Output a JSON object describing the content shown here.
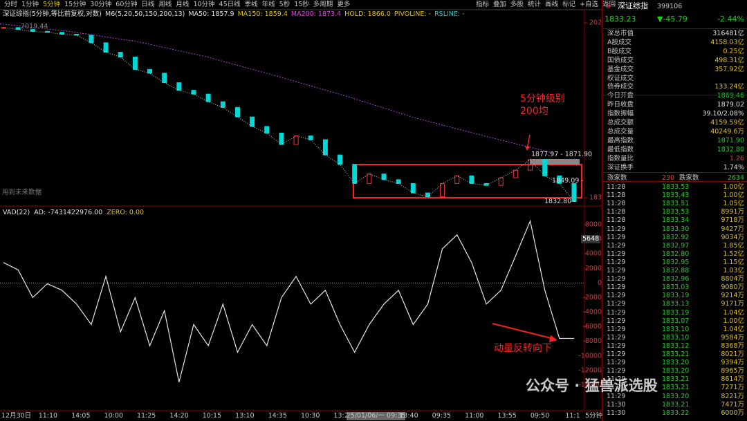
{
  "toolbar": {
    "periods": [
      "分时",
      "1分钟",
      "5分钟",
      "15分钟",
      "30分钟",
      "60分钟",
      "日线",
      "周线",
      "月线",
      "10分钟",
      "45日线",
      "季线",
      "年线",
      "5秒",
      "15秒",
      "多周期",
      "更多"
    ],
    "active_period": 2,
    "tools": [
      "指标",
      "叠加",
      "多股",
      "统计",
      "画线",
      "标记",
      "+自选",
      "返回"
    ]
  },
  "price_panel": {
    "legend": [
      {
        "text": "深证综指(5分钟,等比前复权,对数)",
        "color": "#e0e0e0"
      },
      {
        "text": "M6(5,20,50,150,200,13)",
        "color": "#e0e0e0"
      },
      {
        "text": "MA50: 1857.9",
        "color": "#e0e0e0"
      },
      {
        "text": "MA150: 1859.4",
        "color": "#e0c020"
      },
      {
        "text": "MA200: 1873.4",
        "color": "#e040e0"
      },
      {
        "text": "HOLD: 1866.0",
        "color": "#e0c020"
      },
      {
        "text": "PIVOLINE: -",
        "color": "#e0c020"
      },
      {
        "text": "RSLINE: -",
        "color": "#40c0c0"
      }
    ],
    "start_label": "2019.44",
    "ylim": [
      1837,
      2021
    ],
    "yticks": [
      2021,
      1837
    ],
    "closes": [
      2016,
      2014,
      2012,
      2011,
      2009,
      2008,
      2000,
      1990,
      1985,
      1972,
      1968,
      1958,
      1950,
      1946,
      1938,
      1932,
      1922,
      1912,
      1905,
      1893,
      1902,
      1898,
      1882,
      1872,
      1852,
      1862,
      1856,
      1852,
      1842,
      1838,
      1852,
      1860,
      1852,
      1850,
      1858,
      1866,
      1877,
      1860,
      1852,
      1833
    ],
    "ma200": [
      2020,
      2012,
      2001,
      1985,
      1965,
      1944,
      1921,
      1902,
      1884
    ],
    "up_color": "#ff3030",
    "down_color": "#00d8d8",
    "ma200_color": "#b040e0",
    "price_labels": [
      "1877.97 - 1871.90",
      "1849.09 -",
      "1832.80 -"
    ],
    "annotation": [
      "5分钟级别",
      "200均"
    ],
    "note": "用到未来数据"
  },
  "vad_panel": {
    "header": [
      {
        "text": "VAD(22)",
        "color": "#e0e0e0"
      },
      {
        "text": "AD: -7431422976.00",
        "color": "#e0e0e0"
      },
      {
        "text": "ZERO: 0.00",
        "color": "#e0c020"
      }
    ],
    "ylim": [
      -14000,
      8000
    ],
    "yticks": [
      8000,
      6000,
      4000,
      2000,
      0,
      -2000,
      -4000,
      -6000,
      -8000,
      -10000,
      -12000,
      -14000
    ],
    "values": [
      2800,
      1800,
      -2000,
      -100,
      -1000,
      -2900,
      -5700,
      900,
      -6700,
      -2000,
      -8600,
      -3800,
      -13600,
      -5700,
      -8600,
      -2900,
      -9500,
      -5700,
      -8600,
      -2000,
      900,
      -2900,
      -1000,
      -5700,
      -9500,
      -5700,
      -2900,
      -1000,
      -5700,
      -2900,
      4700,
      6600,
      2800,
      -2900,
      -1000,
      3700,
      8500,
      -1000,
      -7600,
      -7600
    ],
    "marker": "5648",
    "annotation": "动量反转向下"
  },
  "x_axis": [
    "12月30日",
    "11:10",
    "14:05",
    "10:00",
    "11:25",
    "14:20",
    "10:15",
    "13:10",
    "14:35",
    "10:30",
    "13:25",
    "25/01/06/一 09:35",
    "13:40",
    "09:35",
    "11:00",
    "13:55",
    "09:50",
    "11:1"
  ],
  "period_label": "5分钟",
  "quote": {
    "index": "6",
    "name": "深证综指",
    "code": "399106",
    "price": "1833.23",
    "change": "▼-45.79",
    "pct": "-2.44%"
  },
  "stats": [
    {
      "label": "深总市值",
      "value": "316481亿",
      "color": "#e0e0e0"
    },
    {
      "label": "A股成交",
      "value": "4158.03亿",
      "color": "#e0c020"
    },
    {
      "label": "B股成交",
      "value": "0.25亿",
      "color": "#e0c020"
    },
    {
      "label": "国债成交",
      "value": "498.31亿",
      "color": "#e0c020"
    },
    {
      "label": "基金成交",
      "value": "357.92亿",
      "color": "#e0c020"
    },
    {
      "label": "权证成交",
      "value": null,
      "color": "#e0c020"
    },
    {
      "label": "债券成交",
      "value": "133.24亿",
      "color": "#e0c020"
    },
    {
      "label": "今日开盘",
      "value": "1869.46",
      "color": "#20d020"
    },
    {
      "label": "昨日收盘",
      "value": "1879.02",
      "color": "#e0e0e0"
    },
    {
      "label": "指数振幅",
      "value": "39.10/2.08%",
      "color": "#e0e0e0"
    },
    {
      "label": "总成交额",
      "value": "4159.59亿",
      "color": "#e0c020"
    },
    {
      "label": "总成交量",
      "value": "40249.6万",
      "color": "#e0c020"
    },
    {
      "label": "最高指数",
      "value": "1871.90",
      "color": "#20d020"
    },
    {
      "label": "最低指数",
      "value": "1832.80",
      "color": "#20d020"
    },
    {
      "label": "指数量比",
      "value": "1.26",
      "color": "#ff3030"
    },
    {
      "label": "深证换手",
      "value": "1.74%",
      "color": "#e0e0e0"
    }
  ],
  "breadth": {
    "up_label": "涨家数",
    "up": "230",
    "down_label": "跌家数",
    "down": "2634"
  },
  "trades": [
    [
      "11:28",
      "1833.53",
      "1.00亿"
    ],
    [
      "11:28",
      "1833.43",
      "1.00亿"
    ],
    [
      "11:28",
      "1833.51",
      "1.05亿"
    ],
    [
      "11:28",
      "1833.53",
      "8991万"
    ],
    [
      "11:28",
      "1833.34",
      "9718万"
    ],
    [
      "11:29",
      "1833.30",
      "9427万"
    ],
    [
      "11:29",
      "1832.92",
      "9034万"
    ],
    [
      "11:29",
      "1832.97",
      "1.85亿"
    ],
    [
      "11:29",
      "1832.80",
      "1.52亿"
    ],
    [
      "11:29",
      "1832.95",
      "1.15亿"
    ],
    [
      "11:29",
      "1832.88",
      "1.03亿"
    ],
    [
      "11:29",
      "1832.96",
      "8804万"
    ],
    [
      "11:29",
      "1833.03",
      "9080万"
    ],
    [
      "11:29",
      "1833.19",
      "9214万"
    ],
    [
      "11:29",
      "1833.13",
      "9171万"
    ],
    [
      "11:29",
      "1833.19",
      "1.04亿"
    ],
    [
      "11:29",
      "1833.07",
      "1.00亿"
    ],
    [
      "11:29",
      "1833.10",
      "1.04亿"
    ],
    [
      "11:29",
      "1833.10",
      "9584万"
    ],
    [
      "11:29",
      "1833.12",
      "8368万"
    ],
    [
      "11:29",
      "1833.21",
      "8021万"
    ],
    [
      "11:29",
      "1833.20",
      "9394万"
    ],
    [
      "11:29",
      "1833.20",
      "8965万"
    ],
    [
      "11:29",
      "1833.21",
      "8614万"
    ],
    [
      "11:29",
      "1833.21",
      "7271万"
    ],
    [
      "11:29",
      "1833.20",
      "8221万"
    ],
    [
      "11:30",
      "1833.21",
      "7471万"
    ],
    [
      "11:30",
      "1833.22",
      "6000万"
    ]
  ],
  "watermark": "公众号 · 猛兽派选股"
}
